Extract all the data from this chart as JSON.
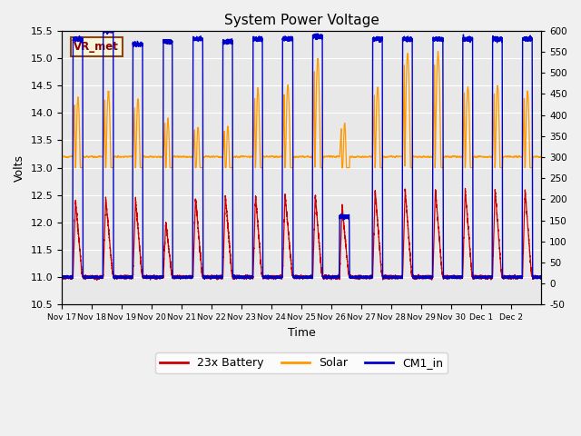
{
  "title": "System Power Voltage",
  "xlabel": "Time",
  "ylabel": "Volts",
  "ylim_left": [
    10.5,
    15.5
  ],
  "ylim_right": [
    -50,
    600
  ],
  "yticks_left": [
    10.5,
    11.0,
    11.5,
    12.0,
    12.5,
    13.0,
    13.5,
    14.0,
    14.5,
    15.0,
    15.5
  ],
  "yticks_right": [
    -50,
    0,
    50,
    100,
    150,
    200,
    250,
    300,
    350,
    400,
    450,
    500,
    550,
    600
  ],
  "xtick_labels": [
    "Nov 17",
    "Nov 18",
    "Nov 19",
    "Nov 20",
    "Nov 21",
    "Nov 22",
    "Nov 23",
    "Nov 24",
    "Nov 25",
    "Nov 26",
    "Nov 27",
    "Nov 28",
    "Nov 29",
    "Nov 30",
    "Dec 1",
    "Dec 2"
  ],
  "legend_labels": [
    "23x Battery",
    "Solar",
    "CM1_in"
  ],
  "battery_color": "#cc0000",
  "solar_color": "#ff9900",
  "cm1_color": "#0000cc",
  "plot_bg_color": "#e8e8e8",
  "fig_bg_color": "#f0f0f0",
  "grid_color": "#ffffff",
  "annotation_text": "VR_met",
  "n_days": 16,
  "pts_per_day": 480
}
